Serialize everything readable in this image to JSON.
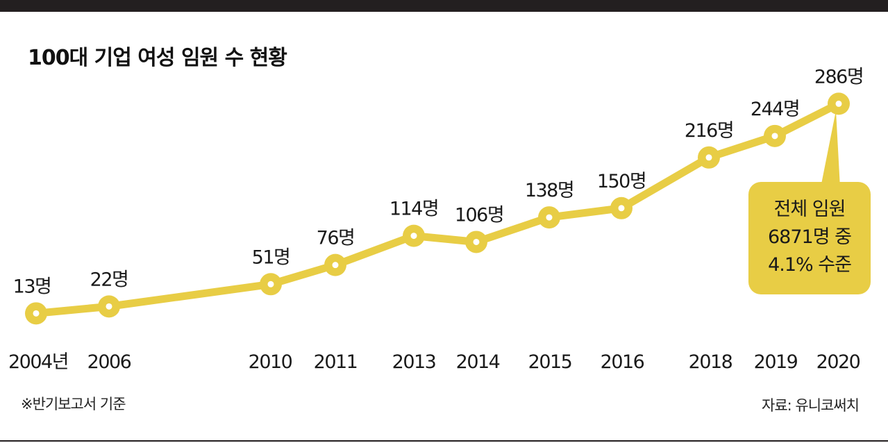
{
  "title": "100대 기업 여성 임원 수 현황",
  "note": "※반기보고서 기준",
  "source": "자료: 유니코써치",
  "colors": {
    "line": "#e8cd45",
    "callout": "#e8cd45",
    "topbar": "#231f20"
  },
  "callout": [
    "전체 임원",
    "6871명 중",
    "4.1% 수준"
  ],
  "chart_data": {
    "type": "line",
    "title": "100대 기업 여성 임원 수 현황",
    "x": [
      2004,
      2006,
      2010,
      2011,
      2013,
      2014,
      2015,
      2016,
      2018,
      2019,
      2020
    ],
    "x_labels": [
      "2004년",
      "2006",
      "2010",
      "2011",
      "2013",
      "2014",
      "2015",
      "2016",
      "2018",
      "2019",
      "2020"
    ],
    "values": [
      13,
      22,
      51,
      76,
      114,
      106,
      138,
      150,
      216,
      244,
      286
    ],
    "value_labels": [
      "13명",
      "22명",
      "51명",
      "76명",
      "114명",
      "106명",
      "138명",
      "150명",
      "216명",
      "244명",
      "286명"
    ],
    "unit": "명",
    "grid": false,
    "legend": "none"
  }
}
